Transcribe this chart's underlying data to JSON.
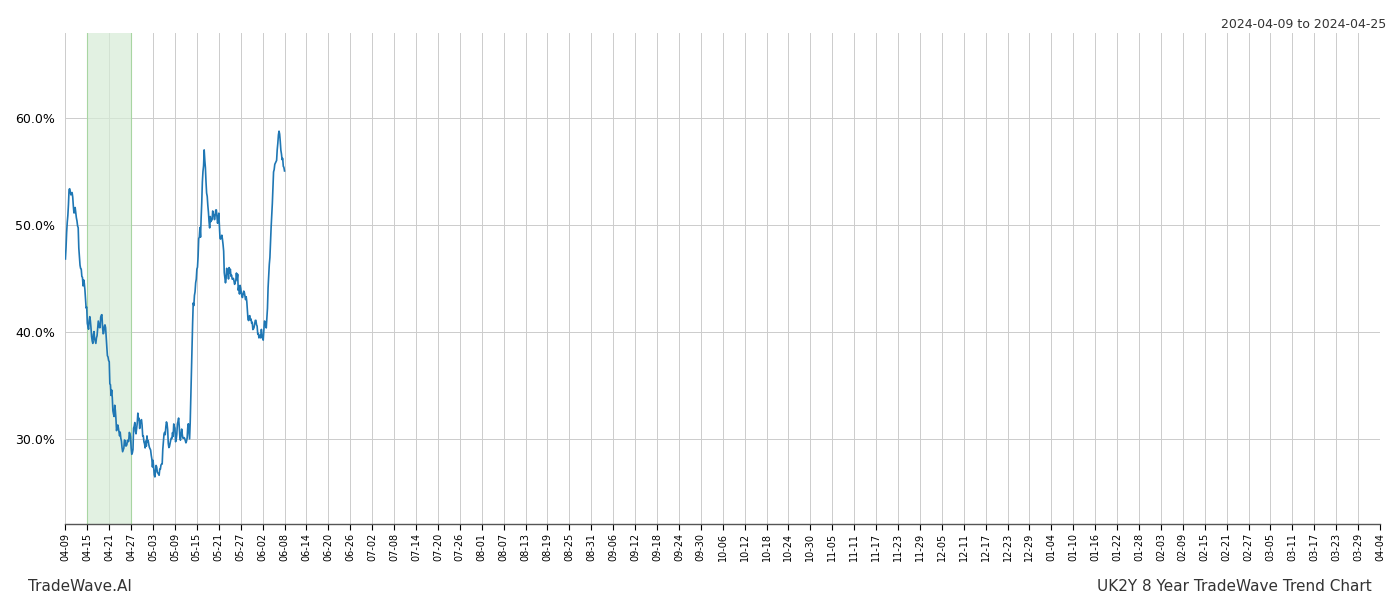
{
  "title_right": "2024-04-09 to 2024-04-25",
  "footer_left": "TradeWave.AI",
  "footer_right": "UK2Y 8 Year TradeWave Trend Chart",
  "line_color": "#1f77b4",
  "line_width": 1.2,
  "highlight_color": "#d6ecd6",
  "highlight_alpha": 0.7,
  "background_color": "#ffffff",
  "grid_color": "#cccccc",
  "ylim": [
    22,
    68
  ],
  "yticks": [
    30,
    40,
    50,
    60
  ],
  "xtick_labels": [
    "04-09",
    "04-15",
    "04-21",
    "04-27",
    "05-03",
    "05-09",
    "05-15",
    "05-21",
    "05-27",
    "06-02",
    "06-08",
    "06-14",
    "06-20",
    "06-26",
    "07-02",
    "07-08",
    "07-14",
    "07-20",
    "07-26",
    "08-01",
    "08-07",
    "08-13",
    "08-19",
    "08-25",
    "08-31",
    "09-06",
    "09-12",
    "09-18",
    "09-24",
    "09-30",
    "10-06",
    "10-12",
    "10-18",
    "10-24",
    "10-30",
    "11-05",
    "11-11",
    "11-17",
    "11-23",
    "11-29",
    "12-05",
    "12-11",
    "12-17",
    "12-23",
    "12-29",
    "01-04",
    "01-10",
    "01-16",
    "01-22",
    "01-28",
    "02-03",
    "02-09",
    "02-15",
    "02-21",
    "02-27",
    "03-05",
    "03-11",
    "03-17",
    "03-23",
    "03-29",
    "04-04"
  ],
  "waypoints": [
    [
      0,
      46.5
    ],
    [
      1,
      52.5
    ],
    [
      2,
      53.5
    ],
    [
      3,
      51.5
    ],
    [
      4,
      47.0
    ],
    [
      5,
      44.5
    ],
    [
      6,
      42.0
    ],
    [
      7,
      40.5
    ],
    [
      8,
      39.5
    ],
    [
      9,
      40.0
    ],
    [
      10,
      41.5
    ],
    [
      11,
      39.5
    ],
    [
      12,
      36.0
    ],
    [
      13,
      33.5
    ],
    [
      14,
      31.5
    ],
    [
      15,
      30.0
    ],
    [
      16,
      29.5
    ],
    [
      17,
      30.5
    ],
    [
      18,
      29.0
    ],
    [
      19,
      30.5
    ],
    [
      20,
      31.5
    ],
    [
      21,
      31.0
    ],
    [
      22,
      30.0
    ],
    [
      23,
      29.5
    ],
    [
      24,
      27.5
    ],
    [
      25,
      27.0
    ],
    [
      26,
      26.5
    ],
    [
      27,
      30.0
    ],
    [
      28,
      30.5
    ],
    [
      29,
      29.5
    ],
    [
      30,
      30.0
    ],
    [
      31,
      31.5
    ],
    [
      32,
      30.5
    ],
    [
      33,
      30.0
    ],
    [
      34,
      30.5
    ],
    [
      35,
      40.5
    ],
    [
      36,
      46.0
    ],
    [
      37,
      50.0
    ],
    [
      38,
      57.5
    ],
    [
      39,
      51.0
    ],
    [
      40,
      50.5
    ],
    [
      41,
      51.5
    ],
    [
      42,
      49.5
    ],
    [
      43,
      48.5
    ],
    [
      44,
      46.0
    ],
    [
      45,
      45.5
    ],
    [
      46,
      45.0
    ],
    [
      47,
      44.5
    ],
    [
      48,
      44.0
    ],
    [
      49,
      43.5
    ],
    [
      50,
      41.5
    ],
    [
      51,
      40.5
    ],
    [
      52,
      40.0
    ],
    [
      53,
      39.5
    ],
    [
      54,
      39.5
    ],
    [
      55,
      40.5
    ],
    [
      56,
      47.5
    ],
    [
      57,
      55.0
    ],
    [
      58,
      58.0
    ],
    [
      59,
      57.5
    ],
    [
      60,
      55.0
    ]
  ],
  "noise_seed": 42,
  "noise_scale": 1.2
}
